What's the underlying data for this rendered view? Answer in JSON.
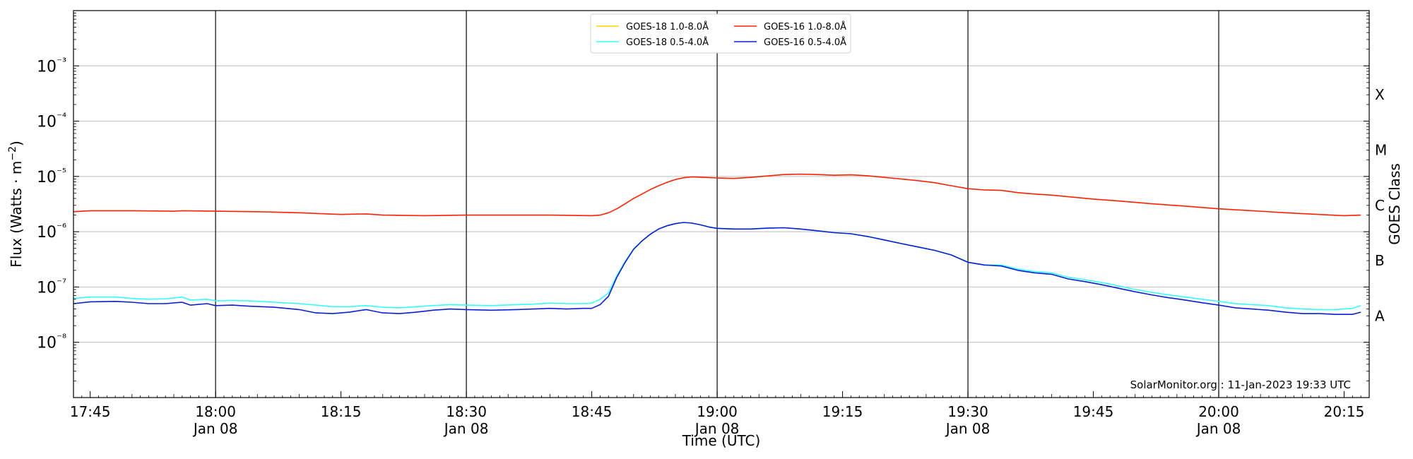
{
  "chart_data": {
    "type": "line",
    "ylabel": "Flux (Watts · m⁻²)",
    "xlabel": "Time (UTC)",
    "right_axis_label": "GOES Class",
    "y_scale": "log",
    "ylim": [
      1e-09,
      0.01
    ],
    "xlim": [
      "17:43",
      "20:18"
    ],
    "grid": "horizontal lines at decades 1e-8 to 1e-3; vertical lines at 30-minute marks",
    "legend_position": "top-center",
    "credit": "SolarMonitor.org : 11-Jan-2023 19:33 UTC",
    "y_ticks": [
      {
        "value": 1e-08,
        "label": "10⁻⁸"
      },
      {
        "value": 1e-07,
        "label": "10⁻⁷"
      },
      {
        "value": 1e-06,
        "label": "10⁻⁶"
      },
      {
        "value": 1e-05,
        "label": "10⁻⁵"
      },
      {
        "value": 0.0001,
        "label": "10⁻⁴"
      },
      {
        "value": 0.001,
        "label": "10⁻³"
      }
    ],
    "x_ticks": [
      {
        "time": "17:45",
        "label": "17:45",
        "sublabel": ""
      },
      {
        "time": "18:00",
        "label": "18:00",
        "sublabel": "Jan 08"
      },
      {
        "time": "18:15",
        "label": "18:15",
        "sublabel": ""
      },
      {
        "time": "18:30",
        "label": "18:30",
        "sublabel": "Jan 08"
      },
      {
        "time": "18:45",
        "label": "18:45",
        "sublabel": ""
      },
      {
        "time": "19:00",
        "label": "19:00",
        "sublabel": "Jan 08"
      },
      {
        "time": "19:15",
        "label": "19:15",
        "sublabel": ""
      },
      {
        "time": "19:30",
        "label": "19:30",
        "sublabel": "Jan 08"
      },
      {
        "time": "19:45",
        "label": "19:45",
        "sublabel": ""
      },
      {
        "time": "20:00",
        "label": "20:00",
        "sublabel": "Jan 08"
      },
      {
        "time": "20:15",
        "label": "20:15",
        "sublabel": ""
      }
    ],
    "vertical_lines": [
      "18:00",
      "18:30",
      "19:00",
      "19:30",
      "20:00"
    ],
    "goes_classes": [
      {
        "label": "A",
        "value": 3e-08
      },
      {
        "label": "B",
        "value": 3e-07
      },
      {
        "label": "C",
        "value": 3e-06
      },
      {
        "label": "M",
        "value": 3e-05
      },
      {
        "label": "X",
        "value": 0.0003
      }
    ],
    "series": [
      {
        "name": "GOES-18 1.0-8.0Å",
        "color": "#ffd700",
        "points": []
      },
      {
        "name": "GOES-18 0.5-4.0Å",
        "color": "#33ffff",
        "points": [
          [
            "17:43",
            6.2e-08
          ],
          [
            "17:45",
            6.6e-08
          ],
          [
            "17:48",
            6.6e-08
          ],
          [
            "17:50",
            6.2e-08
          ],
          [
            "17:52",
            6e-08
          ],
          [
            "17:54",
            6.1e-08
          ],
          [
            "17:56",
            6.6e-08
          ],
          [
            "17:57",
            5.8e-08
          ],
          [
            "17:59",
            6e-08
          ],
          [
            "18:00",
            5.6e-08
          ],
          [
            "18:02",
            5.7e-08
          ],
          [
            "18:04",
            5.6e-08
          ],
          [
            "18:07",
            5.3e-08
          ],
          [
            "18:10",
            5e-08
          ],
          [
            "18:12",
            4.7e-08
          ],
          [
            "18:14",
            4.4e-08
          ],
          [
            "18:16",
            4.4e-08
          ],
          [
            "18:18",
            4.6e-08
          ],
          [
            "18:20",
            4.3e-08
          ],
          [
            "18:22",
            4.2e-08
          ],
          [
            "18:24",
            4.4e-08
          ],
          [
            "18:26",
            4.6e-08
          ],
          [
            "18:28",
            4.8e-08
          ],
          [
            "18:30",
            4.7e-08
          ],
          [
            "18:33",
            4.6e-08
          ],
          [
            "18:36",
            4.8e-08
          ],
          [
            "18:38",
            4.9e-08
          ],
          [
            "18:40",
            5.1e-08
          ],
          [
            "18:42",
            5e-08
          ],
          [
            "18:44",
            5e-08
          ],
          [
            "18:45",
            5.1e-08
          ],
          [
            "18:46",
            6e-08
          ],
          [
            "18:47",
            7.8e-08
          ],
          [
            "18:48",
            1.6e-07
          ],
          [
            "18:49",
            2.9e-07
          ],
          [
            "18:50",
            4.9e-07
          ],
          [
            "18:51",
            6.8e-07
          ],
          [
            "18:52",
            9e-07
          ],
          [
            "18:53",
            1.12e-06
          ],
          [
            "18:54",
            1.28e-06
          ],
          [
            "18:55",
            1.4e-06
          ],
          [
            "18:56",
            1.47e-06
          ],
          [
            "18:57",
            1.43e-06
          ],
          [
            "18:58",
            1.33e-06
          ],
          [
            "18:59",
            1.22e-06
          ],
          [
            "19:00",
            1.15e-06
          ],
          [
            "19:02",
            1.12e-06
          ],
          [
            "19:04",
            1.12e-06
          ],
          [
            "19:06",
            1.16e-06
          ],
          [
            "19:08",
            1.18e-06
          ],
          [
            "19:10",
            1.12e-06
          ],
          [
            "19:12",
            1.04e-06
          ],
          [
            "19:14",
            9.6e-07
          ],
          [
            "19:16",
            9.2e-07
          ],
          [
            "19:18",
            8.2e-07
          ],
          [
            "19:20",
            7.1e-07
          ],
          [
            "19:22",
            6.1e-07
          ],
          [
            "19:24",
            5.3e-07
          ],
          [
            "19:26",
            4.6e-07
          ],
          [
            "19:28",
            3.8e-07
          ],
          [
            "19:30",
            2.8e-07
          ],
          [
            "19:32",
            2.5e-07
          ],
          [
            "19:34",
            2.5e-07
          ],
          [
            "19:36",
            2.1e-07
          ],
          [
            "19:38",
            1.9e-07
          ],
          [
            "19:40",
            1.8e-07
          ],
          [
            "19:42",
            1.5e-07
          ],
          [
            "19:44",
            1.35e-07
          ],
          [
            "19:46",
            1.2e-07
          ],
          [
            "19:48",
            1.05e-07
          ],
          [
            "19:50",
            9e-08
          ],
          [
            "19:52",
            8e-08
          ],
          [
            "19:54",
            7.2e-08
          ],
          [
            "19:56",
            6.6e-08
          ],
          [
            "19:58",
            6e-08
          ],
          [
            "20:00",
            5.5e-08
          ],
          [
            "20:02",
            5e-08
          ],
          [
            "20:04",
            4.8e-08
          ],
          [
            "20:06",
            4.6e-08
          ],
          [
            "20:08",
            4.2e-08
          ],
          [
            "20:10",
            4e-08
          ],
          [
            "20:12",
            3.9e-08
          ],
          [
            "20:14",
            3.9e-08
          ],
          [
            "20:16",
            4.1e-08
          ],
          [
            "20:17",
            4.6e-08
          ]
        ]
      },
      {
        "name": "GOES-16 1.0-8.0Å",
        "color": "#ff2200",
        "points": [
          [
            "17:43",
            2.3e-06
          ],
          [
            "17:45",
            2.4e-06
          ],
          [
            "17:50",
            2.4e-06
          ],
          [
            "17:55",
            2.35e-06
          ],
          [
            "17:56",
            2.4e-06
          ],
          [
            "18:00",
            2.35e-06
          ],
          [
            "18:05",
            2.3e-06
          ],
          [
            "18:10",
            2.2e-06
          ],
          [
            "18:15",
            2.05e-06
          ],
          [
            "18:18",
            2.1e-06
          ],
          [
            "18:20",
            2e-06
          ],
          [
            "18:25",
            1.95e-06
          ],
          [
            "18:30",
            2e-06
          ],
          [
            "18:35",
            2e-06
          ],
          [
            "18:40",
            2e-06
          ],
          [
            "18:45",
            1.95e-06
          ],
          [
            "18:46",
            2e-06
          ],
          [
            "18:47",
            2.2e-06
          ],
          [
            "18:48",
            2.6e-06
          ],
          [
            "18:49",
            3.2e-06
          ],
          [
            "18:50",
            4e-06
          ],
          [
            "18:51",
            4.8e-06
          ],
          [
            "18:52",
            5.8e-06
          ],
          [
            "18:53",
            6.8e-06
          ],
          [
            "18:54",
            7.8e-06
          ],
          [
            "18:55",
            8.8e-06
          ],
          [
            "18:56",
            9.5e-06
          ],
          [
            "18:57",
            9.8e-06
          ],
          [
            "18:58",
            9.7e-06
          ],
          [
            "19:00",
            9.4e-06
          ],
          [
            "19:02",
            9.2e-06
          ],
          [
            "19:04",
            9.6e-06
          ],
          [
            "19:06",
            1.02e-05
          ],
          [
            "19:08",
            1.08e-05
          ],
          [
            "19:10",
            1.1e-05
          ],
          [
            "19:12",
            1.08e-05
          ],
          [
            "19:14",
            1.05e-05
          ],
          [
            "19:16",
            1.07e-05
          ],
          [
            "19:18",
            1.03e-05
          ],
          [
            "19:20",
            9.6e-06
          ],
          [
            "19:22",
            9e-06
          ],
          [
            "19:24",
            8.4e-06
          ],
          [
            "19:26",
            7.7e-06
          ],
          [
            "19:28",
            6.8e-06
          ],
          [
            "19:30",
            6e-06
          ],
          [
            "19:32",
            5.7e-06
          ],
          [
            "19:34",
            5.6e-06
          ],
          [
            "19:36",
            5.1e-06
          ],
          [
            "19:38",
            4.8e-06
          ],
          [
            "19:40",
            4.6e-06
          ],
          [
            "19:42",
            4.3e-06
          ],
          [
            "19:45",
            3.9e-06
          ],
          [
            "19:48",
            3.6e-06
          ],
          [
            "19:52",
            3.2e-06
          ],
          [
            "19:56",
            2.9e-06
          ],
          [
            "20:00",
            2.6e-06
          ],
          [
            "20:04",
            2.4e-06
          ],
          [
            "20:08",
            2.2e-06
          ],
          [
            "20:12",
            2.05e-06
          ],
          [
            "20:15",
            1.95e-06
          ],
          [
            "20:17",
            2e-06
          ]
        ]
      },
      {
        "name": "GOES-16 0.5-4.0Å",
        "color": "#0a1ed8",
        "points": [
          [
            "17:43",
            5e-08
          ],
          [
            "17:45",
            5.4e-08
          ],
          [
            "17:48",
            5.5e-08
          ],
          [
            "17:50",
            5.3e-08
          ],
          [
            "17:52",
            5e-08
          ],
          [
            "17:54",
            5e-08
          ],
          [
            "17:56",
            5.3e-08
          ],
          [
            "17:57",
            4.7e-08
          ],
          [
            "17:59",
            5e-08
          ],
          [
            "18:00",
            4.6e-08
          ],
          [
            "18:02",
            4.7e-08
          ],
          [
            "18:04",
            4.5e-08
          ],
          [
            "18:07",
            4.3e-08
          ],
          [
            "18:10",
            3.9e-08
          ],
          [
            "18:12",
            3.4e-08
          ],
          [
            "18:14",
            3.3e-08
          ],
          [
            "18:16",
            3.5e-08
          ],
          [
            "18:18",
            3.9e-08
          ],
          [
            "18:20",
            3.4e-08
          ],
          [
            "18:22",
            3.3e-08
          ],
          [
            "18:24",
            3.5e-08
          ],
          [
            "18:26",
            3.8e-08
          ],
          [
            "18:28",
            4e-08
          ],
          [
            "18:30",
            3.9e-08
          ],
          [
            "18:33",
            3.8e-08
          ],
          [
            "18:36",
            3.9e-08
          ],
          [
            "18:38",
            4e-08
          ],
          [
            "18:40",
            4.1e-08
          ],
          [
            "18:42",
            4e-08
          ],
          [
            "18:44",
            4.1e-08
          ],
          [
            "18:45",
            4.1e-08
          ],
          [
            "18:46",
            4.8e-08
          ],
          [
            "18:47",
            6.8e-08
          ],
          [
            "18:48",
            1.5e-07
          ],
          [
            "18:49",
            2.8e-07
          ],
          [
            "18:50",
            4.8e-07
          ],
          [
            "18:51",
            6.8e-07
          ],
          [
            "18:52",
            9e-07
          ],
          [
            "18:53",
            1.12e-06
          ],
          [
            "18:54",
            1.28e-06
          ],
          [
            "18:55",
            1.4e-06
          ],
          [
            "18:56",
            1.47e-06
          ],
          [
            "18:57",
            1.43e-06
          ],
          [
            "18:58",
            1.33e-06
          ],
          [
            "18:59",
            1.22e-06
          ],
          [
            "19:00",
            1.15e-06
          ],
          [
            "19:02",
            1.12e-06
          ],
          [
            "19:04",
            1.12e-06
          ],
          [
            "19:06",
            1.16e-06
          ],
          [
            "19:08",
            1.18e-06
          ],
          [
            "19:10",
            1.12e-06
          ],
          [
            "19:12",
            1.04e-06
          ],
          [
            "19:14",
            9.6e-07
          ],
          [
            "19:16",
            9.2e-07
          ],
          [
            "19:18",
            8.2e-07
          ],
          [
            "19:20",
            7.1e-07
          ],
          [
            "19:22",
            6.1e-07
          ],
          [
            "19:24",
            5.3e-07
          ],
          [
            "19:26",
            4.6e-07
          ],
          [
            "19:28",
            3.8e-07
          ],
          [
            "19:30",
            2.8e-07
          ],
          [
            "19:32",
            2.5e-07
          ],
          [
            "19:34",
            2.4e-07
          ],
          [
            "19:36",
            2e-07
          ],
          [
            "19:38",
            1.8e-07
          ],
          [
            "19:40",
            1.7e-07
          ],
          [
            "19:42",
            1.4e-07
          ],
          [
            "19:44",
            1.25e-07
          ],
          [
            "19:46",
            1.1e-07
          ],
          [
            "19:48",
            9.5e-08
          ],
          [
            "19:50",
            8.2e-08
          ],
          [
            "19:52",
            7.2e-08
          ],
          [
            "19:54",
            6.4e-08
          ],
          [
            "19:56",
            5.8e-08
          ],
          [
            "19:58",
            5.2e-08
          ],
          [
            "20:00",
            4.7e-08
          ],
          [
            "20:02",
            4.2e-08
          ],
          [
            "20:04",
            4e-08
          ],
          [
            "20:06",
            3.8e-08
          ],
          [
            "20:08",
            3.5e-08
          ],
          [
            "20:10",
            3.3e-08
          ],
          [
            "20:12",
            3.3e-08
          ],
          [
            "20:14",
            3.2e-08
          ],
          [
            "20:16",
            3.2e-08
          ],
          [
            "20:17",
            3.5e-08
          ]
        ]
      }
    ]
  }
}
